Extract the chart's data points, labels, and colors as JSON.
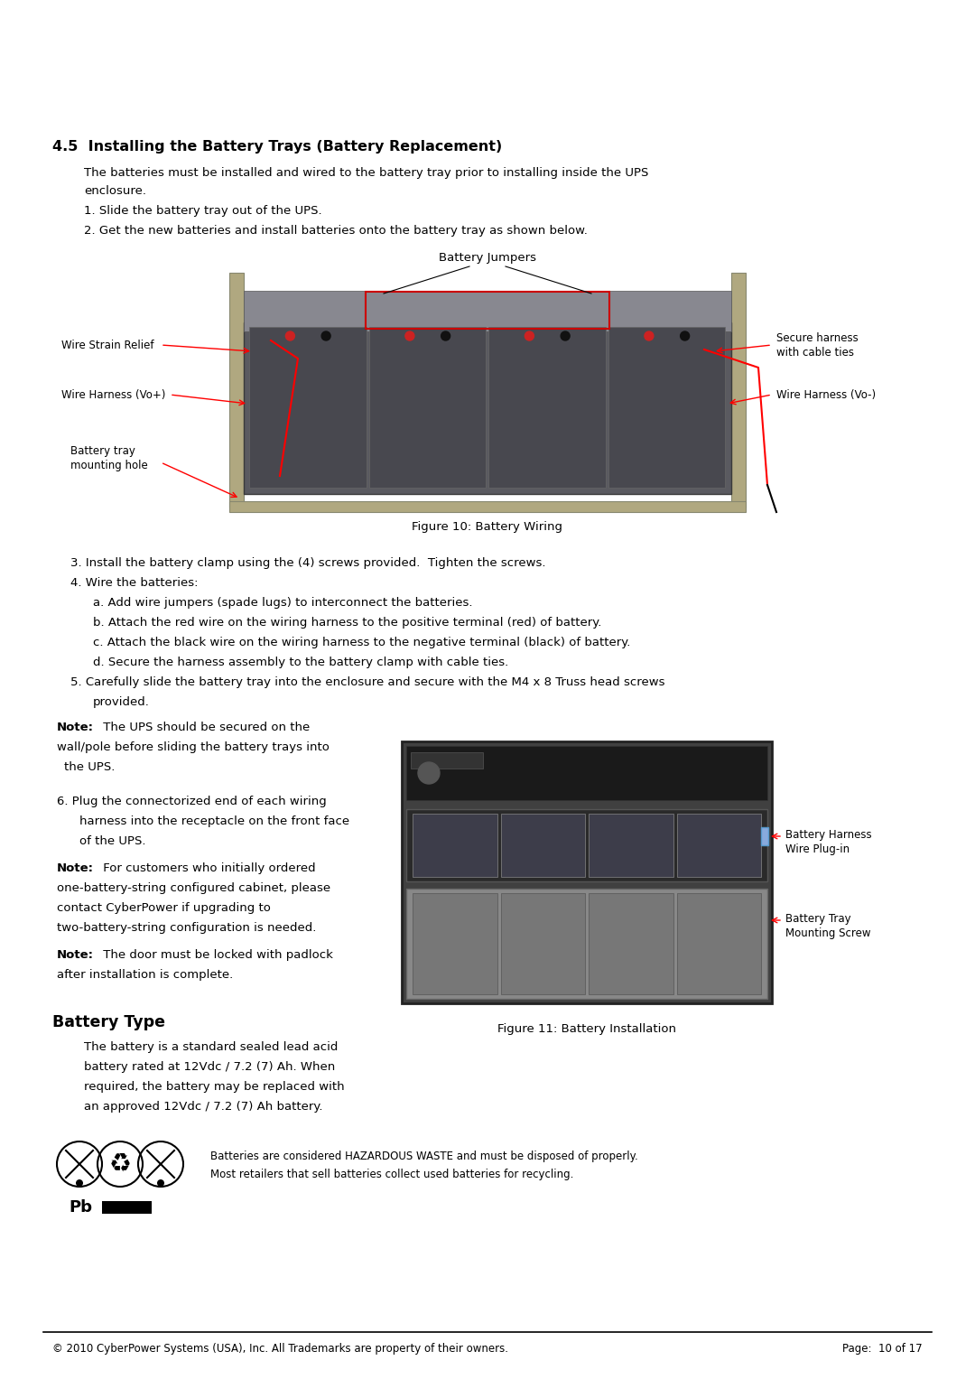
{
  "page_bg": "#ffffff",
  "body_size": 9.5,
  "small_size": 8.5,
  "heading_size": 11.5,
  "label_size": 8.5,
  "section_heading_num": "4.5",
  "section_heading_text": "  Installing the Battery Trays (Battery Replacement)",
  "intro_line1": "The batteries must be installed and wired to the battery tray prior to installing inside the UPS",
  "intro_line2": "enclosure.",
  "step1": "1. Slide the battery tray out of the UPS.",
  "step2": "2. Get the new batteries and install batteries onto the battery tray as shown below.",
  "fig10_caption": "Figure 10: Battery Wiring",
  "step3": "3. Install the battery clamp using the (4) screws provided.  Tighten the screws.",
  "step4": "4. Wire the batteries:",
  "step4a": "a. Add wire jumpers (spade lugs) to interconnect the batteries.",
  "step4b": "b. Attach the red wire on the wiring harness to the positive terminal (red) of battery.",
  "step4c": "c. Attach the black wire on the wiring harness to the negative terminal (black) of battery.",
  "step4d": "d. Secure the harness assembly to the battery clamp with cable ties.",
  "step5a": "5. Carefully slide the battery tray into the enclosure and secure with the M4 x 8 Truss head screws",
  "step5b": "   provided.",
  "note1_bold": "Note:",
  "note1_rest": " The UPS should be secured on the",
  "note1_line2": "wall/pole before sliding the battery trays into",
  "note1_line3": " the UPS.",
  "step6a": "6. Plug the connectorized end of each wiring",
  "step6b": "   harness into the receptacle on the front face",
  "step6c": "   of the UPS.",
  "note2_bold": "Note:",
  "note2_rest": " For customers who initially ordered",
  "note2_line2": "one-battery-string configured cabinet, please",
  "note2_line3": "contact CyberPower if upgrading to",
  "note2_line4": "two-battery-string configuration is needed.",
  "note3_bold": "Note:",
  "note3_rest": " The door must be locked with padlock",
  "note3_line2": "after installation is complete.",
  "fig11_caption": "Figure 11: Battery Installation",
  "fig11_label1a": "Battery Harness",
  "fig11_label1b": "Wire Plug-in",
  "fig11_label2a": "Battery Tray",
  "fig11_label2b": "Mounting Screw",
  "battery_heading": "Battery Type",
  "bat_line1": "The battery is a standard sealed lead acid",
  "bat_line2": "battery rated at 12Vdc / 7.2 (7) Ah. When",
  "bat_line3": "required, the battery may be replaced with",
  "bat_line4": "an approved 12Vdc / 7.2 (7) Ah battery.",
  "haz_line1": "Batteries are considered HAZARDOUS WASTE and must be disposed of properly.",
  "haz_line2": "Most retailers that sell batteries collect used batteries for recycling.",
  "pb_text": "Pb",
  "footer_left": "© 2010 CyberPower Systems (USA), Inc. All Trademarks are property of their owners.",
  "footer_right": "Page:  10 of 17"
}
